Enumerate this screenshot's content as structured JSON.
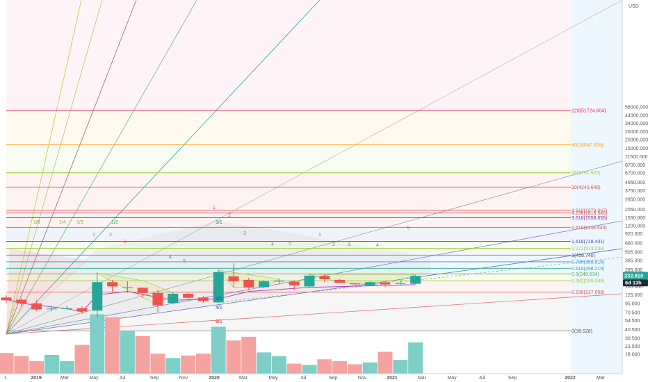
{
  "chart_data": {
    "type": "candlestick",
    "price_scale": "log",
    "currency_label": "USD",
    "colors": {
      "up": "#26a69a",
      "down": "#ef5350",
      "volume_up": "#7ecfc7",
      "volume_down": "#f5a3a1"
    },
    "candles": [
      {
        "o": 115,
        "h": 125,
        "l": 95,
        "c": 105
      },
      {
        "o": 107,
        "h": 113,
        "l": 86,
        "c": 95
      },
      {
        "o": 95,
        "h": 105,
        "l": 74,
        "c": 78
      },
      {
        "o": 80,
        "h": 86,
        "l": 73,
        "c": 80
      },
      {
        "o": 80,
        "h": 88,
        "l": 77,
        "c": 81
      },
      {
        "o": 81,
        "h": 86,
        "l": 68,
        "c": 73
      },
      {
        "o": 75,
        "h": 260,
        "l": 60,
        "c": 190
      },
      {
        "o": 190,
        "h": 205,
        "l": 135,
        "c": 165
      },
      {
        "o": 160,
        "h": 195,
        "l": 135,
        "c": 160
      },
      {
        "o": 158,
        "h": 160,
        "l": 113,
        "c": 133
      },
      {
        "o": 133,
        "h": 148,
        "l": 72,
        "c": 89
      },
      {
        "o": 96,
        "h": 138,
        "l": 92,
        "c": 130
      },
      {
        "o": 130,
        "h": 135,
        "l": 110,
        "c": 114
      },
      {
        "o": 115,
        "h": 122,
        "l": 97,
        "c": 103
      },
      {
        "o": 98,
        "h": 285,
        "l": 97,
        "c": 264
      },
      {
        "o": 230,
        "h": 350,
        "l": 160,
        "c": 195
      },
      {
        "o": 205,
        "h": 220,
        "l": 145,
        "c": 160
      },
      {
        "o": 161,
        "h": 205,
        "l": 155,
        "c": 195
      },
      {
        "o": 195,
        "h": 212,
        "l": 180,
        "c": 198
      },
      {
        "o": 193,
        "h": 200,
        "l": 145,
        "c": 171
      },
      {
        "o": 165,
        "h": 250,
        "l": 160,
        "c": 235
      },
      {
        "o": 232,
        "h": 245,
        "l": 190,
        "c": 209
      },
      {
        "o": 205,
        "h": 210,
        "l": 185,
        "c": 186
      },
      {
        "o": 182,
        "h": 186,
        "l": 175,
        "c": 177
      },
      {
        "o": 170,
        "h": 195,
        "l": 167,
        "c": 190
      },
      {
        "o": 188,
        "h": 195,
        "l": 160,
        "c": 176
      },
      {
        "o": 178,
        "h": 200,
        "l": 170,
        "c": 182
      },
      {
        "o": 180,
        "h": 240,
        "l": 178,
        "c": 232.81
      }
    ],
    "volume": [
      0.33,
      0.28,
      0.2,
      0.3,
      0.2,
      0.46,
      0.95,
      0.9,
      0.68,
      0.6,
      0.32,
      0.25,
      0.29,
      0.32,
      0.75,
      0.53,
      0.59,
      0.34,
      0.28,
      0.16,
      0.14,
      0.23,
      0.2,
      0.15,
      0.18,
      0.35,
      0.22,
      0.5
    ],
    "fib_levels": [
      {
        "label": "0(38.528)",
        "value": 38.528,
        "color": "#808080",
        "tcolor": "#555555"
      },
      {
        "label": "0.236(137.698)",
        "value": 137.698,
        "color": "#e05050",
        "tcolor": "#e05050"
      },
      {
        "label": "0.382(199.049)",
        "value": 199.049,
        "color": "#9acd32",
        "tcolor": "#9acd32"
      },
      {
        "label": "0.5(248.634)",
        "value": 248.634,
        "color": "#4caf50",
        "tcolor": "#4caf50"
      },
      {
        "label": "0.618(298.219)",
        "value": 298.219,
        "color": "#26a69a",
        "tcolor": "#26a69a"
      },
      {
        "label": "0.786(368.815)",
        "value": 368.815,
        "color": "#2196f3",
        "tcolor": "#2196f3"
      },
      {
        "label": "1(458.740)",
        "value": 458.74,
        "color": "#808080",
        "tcolor": "#555555"
      },
      {
        "label": "1.272(573.038)",
        "value": 573.038,
        "color": "#9acd32",
        "tcolor": "#9acd32"
      },
      {
        "label": "1.618(718.431)",
        "value": 718.431,
        "color": "#3f51b5",
        "tcolor": "#3f51b5"
      },
      {
        "label": "2.618(1138.643)",
        "value": 1138.643,
        "color": "#e05050",
        "tcolor": "#e05050"
      },
      {
        "label": "3.618(1558.855)",
        "value": 1558.855,
        "color": "#9c27b0",
        "tcolor": "#9c27b0"
      },
      {
        "label": "4.236(1818.546)",
        "value": 1818.546,
        "color": "#e05050",
        "tcolor": "#e05050"
      },
      {
        "label": "4.618(1979.067)",
        "value": 1979.067,
        "color": "#e05050",
        "tcolor": "#e05050"
      },
      {
        "label": "10(4240.648)",
        "value": 4240.648,
        "color": "#e05050",
        "tcolor": "#e05050"
      },
      {
        "label": "16(6761.920)",
        "value": 6761.92,
        "color": "#9acd32",
        "tcolor": "#9acd32"
      },
      {
        "label": "40(16847.008)",
        "value": 16847.008,
        "color": "#ffa726",
        "tcolor": "#ffa726"
      },
      {
        "label": "123(51724.604)",
        "value": 51724.604,
        "color": "#e91e63",
        "tcolor": "#e91e63"
      }
    ],
    "y_ticks": [
      "58000.000",
      "44000.000",
      "34000.000",
      "26000.000",
      "20000.000",
      "15000.000",
      "11500.000",
      "8700.000",
      "6700.000",
      "4950.000",
      "3750.000",
      "2850.000",
      "2050.000",
      "1550.000",
      "1200.000",
      "920.000",
      "680.000",
      "505.000",
      "385.000",
      "285.000",
      "215.000",
      "165.000",
      "125.000",
      "95.000",
      "70.500",
      "54.500",
      "40.500",
      "30.500",
      "23.500",
      "18.000"
    ],
    "x_ticks": [
      "1",
      "2019",
      "Mar",
      "May",
      "Jul",
      "Sep",
      "Nov",
      "2020",
      "Mar",
      "May",
      "Jul",
      "Sep",
      "Nov",
      "2021",
      "Mar",
      "May",
      "Jul",
      "Sep",
      "2022",
      "Mar"
    ],
    "gann_fan_labels": [
      "1/8",
      "1/4",
      "1/3",
      "1/2",
      "1/1",
      "3/1",
      "4/1",
      "8/1"
    ],
    "wave_labels": [
      "1",
      "2",
      "3",
      "4",
      "5",
      "1",
      "2",
      "3",
      "4",
      "5",
      "1",
      "2",
      "3",
      "4",
      "5"
    ],
    "last_price_tag": "232.810",
    "countdown_tag": "6d 13h"
  }
}
